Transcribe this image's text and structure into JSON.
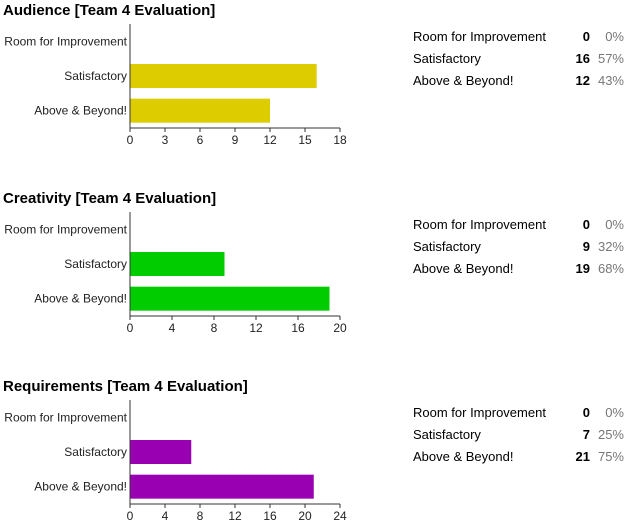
{
  "sections": [
    {
      "title": "Audience [Team 4 Evaluation]",
      "color": "#ddcd00",
      "rows": [
        {
          "label": "Room for Improvement",
          "count": "0",
          "percent": "0%"
        },
        {
          "label": "Satisfactory",
          "count": "16",
          "percent": "57%"
        },
        {
          "label": "Above & Beyond!",
          "count": "12",
          "percent": "43%"
        }
      ]
    },
    {
      "title": "Creativity [Team 4 Evaluation]",
      "color": "#00cc00",
      "rows": [
        {
          "label": "Room for Improvement",
          "count": "0",
          "percent": "0%"
        },
        {
          "label": "Satisfactory",
          "count": "9",
          "percent": "32%"
        },
        {
          "label": "Above & Beyond!",
          "count": "19",
          "percent": "68%"
        }
      ]
    },
    {
      "title": "Requirements [Team 4 Evaluation]",
      "color": "#9900b2",
      "rows": [
        {
          "label": "Room for Improvement",
          "count": "0",
          "percent": "0%"
        },
        {
          "label": "Satisfactory",
          "count": "7",
          "percent": "25%"
        },
        {
          "label": "Above & Beyond!",
          "count": "21",
          "percent": "75%"
        }
      ]
    }
  ],
  "chart_data": [
    {
      "type": "bar",
      "orientation": "horizontal",
      "title": "Audience [Team 4 Evaluation]",
      "categories": [
        "Room for Improvement",
        "Satisfactory",
        "Above & Beyond!"
      ],
      "values": [
        0,
        16,
        12
      ],
      "xlim": [
        0,
        18
      ],
      "xticks": [
        0,
        3,
        6,
        9,
        12,
        15,
        18
      ],
      "color": "#ddcd00"
    },
    {
      "type": "bar",
      "orientation": "horizontal",
      "title": "Creativity [Team 4 Evaluation]",
      "categories": [
        "Room for Improvement",
        "Satisfactory",
        "Above & Beyond!"
      ],
      "values": [
        0,
        9,
        19
      ],
      "xlim": [
        0,
        20
      ],
      "xticks": [
        0,
        4,
        8,
        12,
        16,
        20
      ],
      "color": "#00cc00"
    },
    {
      "type": "bar",
      "orientation": "horizontal",
      "title": "Requirements [Team 4 Evaluation]",
      "categories": [
        "Room for Improvement",
        "Satisfactory",
        "Above & Beyond!"
      ],
      "values": [
        0,
        7,
        21
      ],
      "xlim": [
        0,
        24
      ],
      "xticks": [
        0,
        4,
        8,
        12,
        16,
        20,
        24
      ],
      "color": "#9900b2"
    }
  ]
}
